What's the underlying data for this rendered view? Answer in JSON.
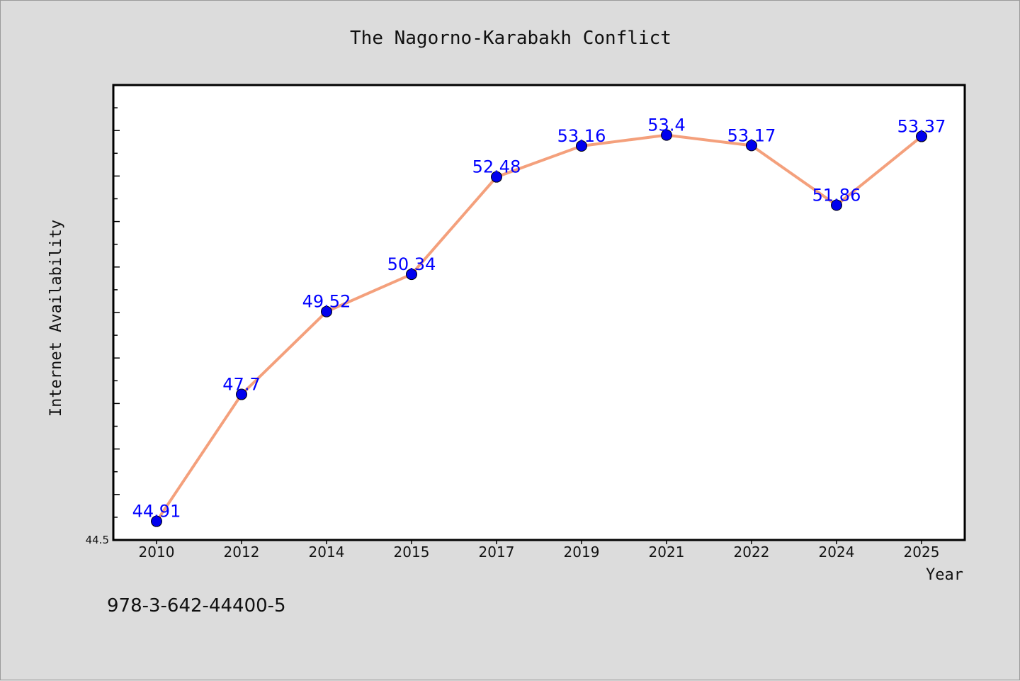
{
  "chart_data": {
    "type": "line",
    "title": "The Nagorno-Karabakh Conflict",
    "xlabel": "Year",
    "ylabel": "Internet Availability",
    "categories": [
      "2010",
      "2012",
      "2014",
      "2015",
      "2017",
      "2019",
      "2021",
      "2022",
      "2024",
      "2025"
    ],
    "series": [
      {
        "values": [
          44.91,
          47.7,
          49.52,
          50.34,
          52.48,
          53.16,
          53.4,
          53.17,
          51.86,
          53.37
        ],
        "labels": [
          "44.91",
          "47.7",
          "49.52",
          "50.34",
          "52.48",
          "53.16",
          "53.4",
          "53.17",
          "51.86",
          "53.37"
        ]
      }
    ],
    "ylim": [
      44.5,
      54.5
    ],
    "yticks_labeled": [
      "44.5"
    ],
    "line_color": "#f4a07c",
    "marker_color": "#0000ee",
    "label_color": "#0000ff",
    "grid": false,
    "legend": "none"
  },
  "footer_text": "978-3-642-44400-5"
}
